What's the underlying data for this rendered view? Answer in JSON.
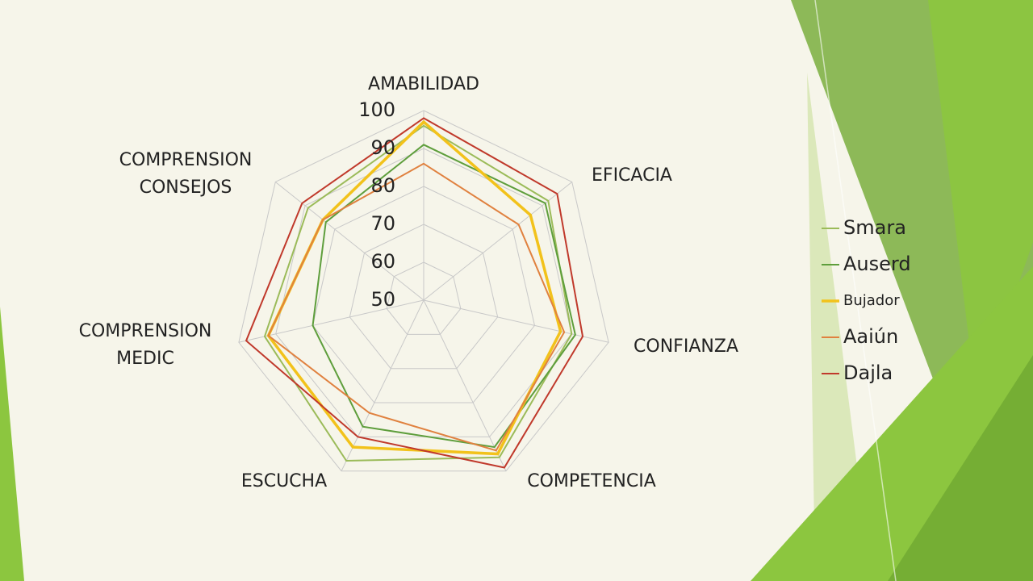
{
  "chart_data": {
    "type": "radar",
    "categories": [
      "AMABILIDAD",
      "EFICACIA",
      "CONFIANZA",
      "COMPETENCIA",
      "ESCUCHA",
      "COMPRENSION MEDIC",
      "COMPRENSION CONSEJOS"
    ],
    "rlim": [
      50,
      100
    ],
    "rticks": [
      50,
      60,
      70,
      80,
      90,
      100
    ],
    "grid": true,
    "legend": "right",
    "series": [
      {
        "name": "Smara",
        "color": "#9bbb59",
        "values": [
          96,
          92,
          90,
          96,
          97,
          93,
          89
        ]
      },
      {
        "name": "Auserd",
        "color": "#5e9e3c",
        "values": [
          91,
          91,
          91,
          93,
          87,
          80,
          83
        ]
      },
      {
        "name": "Bujador",
        "color": "#f2c21b",
        "values": [
          97,
          86,
          87,
          95,
          93,
          92,
          84
        ]
      },
      {
        "name": "Aaiún",
        "color": "#e0813f",
        "values": [
          86,
          82,
          88,
          94,
          83,
          92,
          84
        ]
      },
      {
        "name": "Dajla",
        "color": "#c0392b",
        "values": [
          98,
          95,
          93,
          99,
          90,
          98,
          91
        ]
      }
    ]
  }
}
